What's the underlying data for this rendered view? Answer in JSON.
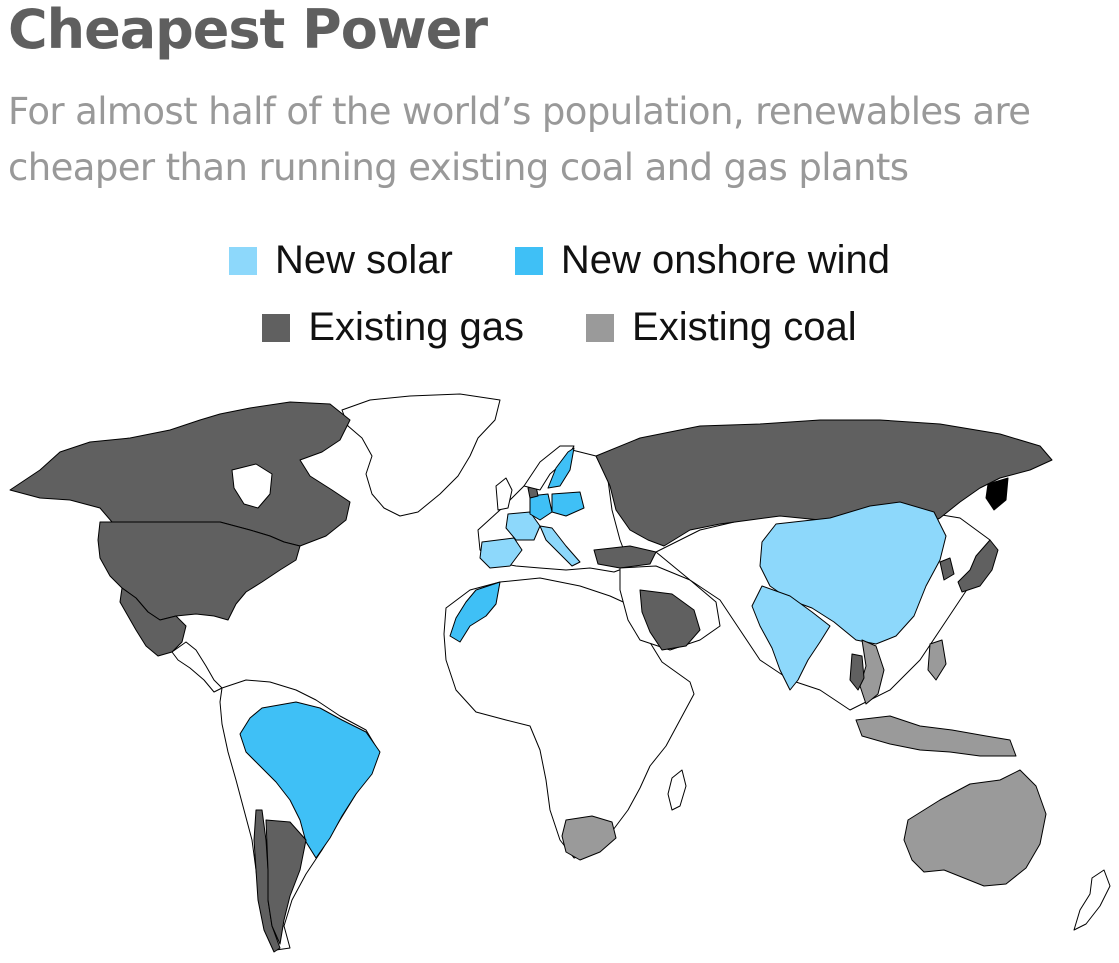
{
  "header": {
    "title": "Cheapest Power",
    "subtitle": "For almost half of the world’s population, renewables are cheaper than running existing coal and gas plants"
  },
  "legend": [
    {
      "label": "New solar",
      "color": "#8dd8fb"
    },
    {
      "label": "New onshore wind",
      "color": "#3fc0f6"
    },
    {
      "label": "Existing gas",
      "color": "#606060"
    },
    {
      "label": "Existing coal",
      "color": "#9a9a9a"
    }
  ],
  "map": {
    "background": "#ffffff",
    "border_color": "#000000",
    "regions": [
      {
        "name": "Canada",
        "category": "Existing gas"
      },
      {
        "name": "United States",
        "category": "Existing gas"
      },
      {
        "name": "Mexico",
        "category": "Existing gas"
      },
      {
        "name": "Russia",
        "category": "Existing gas"
      },
      {
        "name": "Netherlands",
        "category": "Existing gas"
      },
      {
        "name": "Turkey",
        "category": "Existing gas"
      },
      {
        "name": "Saudi Arabia",
        "category": "Existing gas"
      },
      {
        "name": "Japan",
        "category": "Existing gas"
      },
      {
        "name": "South Korea",
        "category": "Existing gas"
      },
      {
        "name": "Thailand",
        "category": "Existing gas"
      },
      {
        "name": "Argentina",
        "category": "Existing gas"
      },
      {
        "name": "Chile",
        "category": "Existing gas"
      },
      {
        "name": "China",
        "category": "New solar"
      },
      {
        "name": "India",
        "category": "New solar"
      },
      {
        "name": "Spain",
        "category": "New solar"
      },
      {
        "name": "Italy",
        "category": "New solar"
      },
      {
        "name": "France",
        "category": "New solar"
      },
      {
        "name": "Brazil",
        "category": "New onshore wind"
      },
      {
        "name": "Sweden",
        "category": "New onshore wind"
      },
      {
        "name": "Germany",
        "category": "New onshore wind"
      },
      {
        "name": "Poland",
        "category": "New onshore wind"
      },
      {
        "name": "Morocco",
        "category": "New onshore wind"
      },
      {
        "name": "Australia",
        "category": "Existing coal"
      },
      {
        "name": "South Africa",
        "category": "Existing coal"
      },
      {
        "name": "Indonesia",
        "category": "Existing coal"
      },
      {
        "name": "Vietnam",
        "category": "Existing coal"
      },
      {
        "name": "Philippines",
        "category": "Existing coal"
      }
    ]
  }
}
